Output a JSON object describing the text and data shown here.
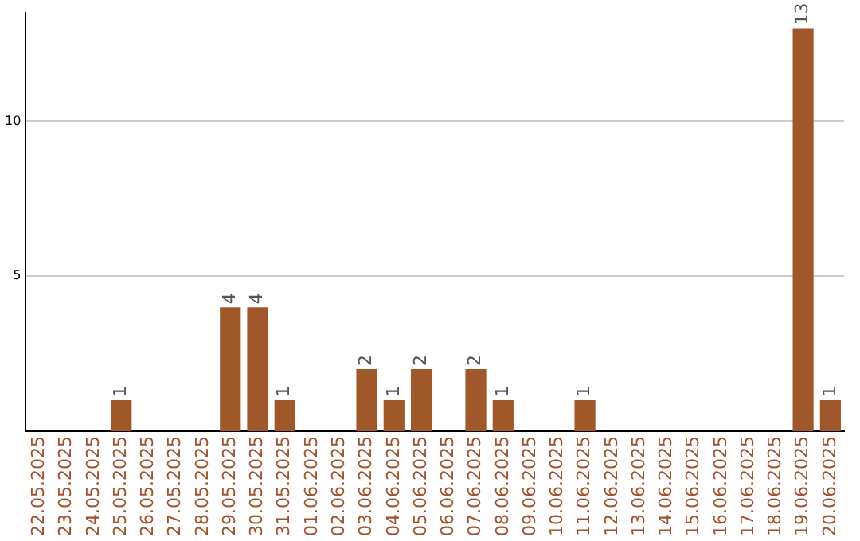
{
  "chart_data": {
    "type": "bar",
    "categories": [
      "22.05.2025",
      "23.05.2025",
      "24.05.2025",
      "25.05.2025",
      "26.05.2025",
      "27.05.2025",
      "28.05.2025",
      "29.05.2025",
      "30.05.2025",
      "31.05.2025",
      "01.06.2025",
      "02.06.2025",
      "03.06.2025",
      "04.06.2025",
      "05.06.2025",
      "06.06.2025",
      "07.06.2025",
      "08.06.2025",
      "09.06.2025",
      "10.06.2025",
      "11.06.2025",
      "12.06.2025",
      "13.06.2025",
      "14.06.2025",
      "15.06.2025",
      "16.06.2025",
      "17.06.2025",
      "18.06.2025",
      "19.06.2025",
      "20.06.2025"
    ],
    "values": [
      0,
      0,
      0,
      1,
      0,
      0,
      0,
      4,
      4,
      1,
      0,
      0,
      2,
      1,
      2,
      0,
      2,
      1,
      0,
      0,
      1,
      0,
      0,
      0,
      0,
      0,
      0,
      0,
      13,
      1
    ],
    "value_labels": [
      null,
      null,
      null,
      "1",
      null,
      null,
      null,
      "4",
      "4",
      "1",
      null,
      null,
      "2",
      "1",
      "2",
      null,
      "2",
      "1",
      null,
      null,
      "1",
      null,
      null,
      null,
      null,
      null,
      null,
      null,
      "13",
      "1"
    ],
    "color": "#a0582a",
    "ylim": [
      0,
      13.5
    ],
    "yticks": [
      5,
      10
    ],
    "grid": "y",
    "legend": false
  }
}
